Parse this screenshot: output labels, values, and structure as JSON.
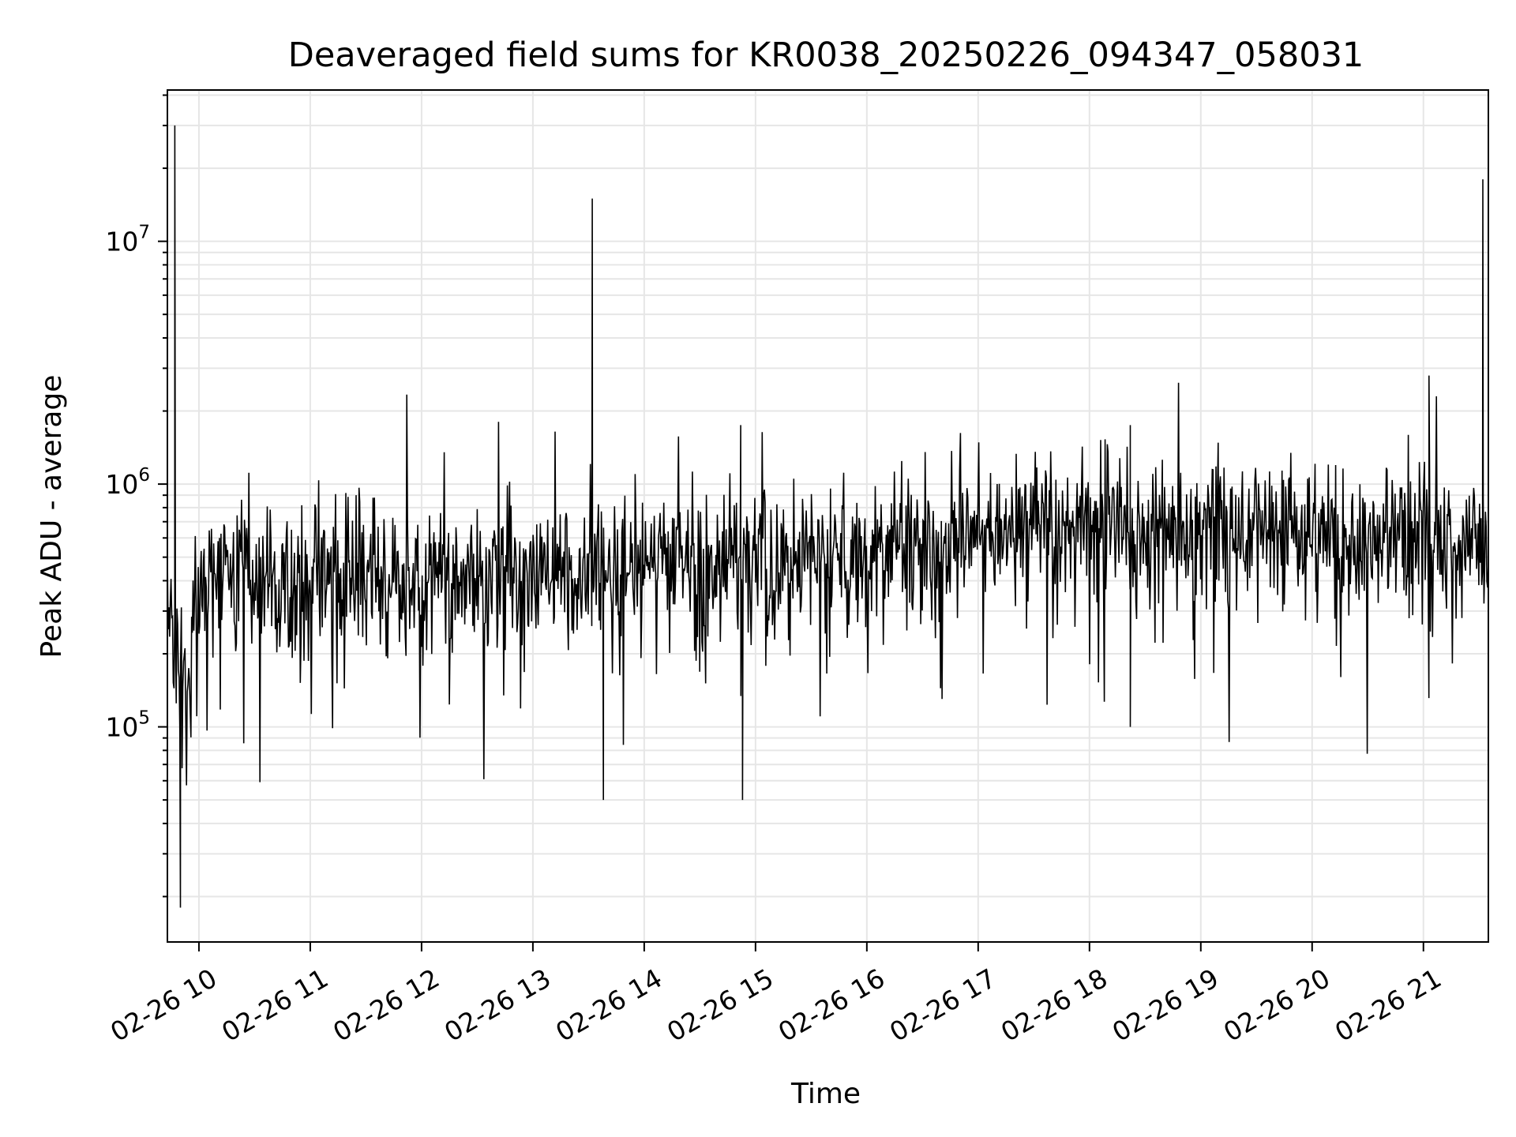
{
  "chart_data": {
    "type": "line",
    "title": "Deaveraged field sums for KR0038_20250226_094347_058031",
    "xlabel": "Time",
    "ylabel": "Peak ADU - average",
    "y_scale": "log",
    "ylim": [
      13000,
      42000000
    ],
    "xlim": [
      "2025-02-26 09:43",
      "2025-02-26 21:35"
    ],
    "grid": true,
    "legend": "none",
    "line_color": "#000000",
    "x_ticks": [
      "02-26 10",
      "02-26 11",
      "02-26 12",
      "02-26 13",
      "02-26 14",
      "02-26 15",
      "02-26 16",
      "02-26 17",
      "02-26 18",
      "02-26 19",
      "02-26 20",
      "02-26 21"
    ],
    "y_ticks": [
      {
        "base": "10",
        "exp": "5",
        "value": 100000
      },
      {
        "base": "10",
        "exp": "6",
        "value": 1000000
      },
      {
        "base": "10",
        "exp": "7",
        "value": 10000000
      }
    ],
    "baseline": {
      "x": [
        "2025-02-26 09:43",
        "2025-02-26 09:50",
        "2025-02-26 10:05",
        "2025-02-26 11:00",
        "2025-02-26 12:00",
        "2025-02-26 13:00",
        "2025-02-26 14:00",
        "2025-02-26 15:00",
        "2025-02-26 16:00",
        "2025-02-26 17:00",
        "2025-02-26 18:00",
        "2025-02-26 19:00",
        "2025-02-26 20:00",
        "2025-02-26 21:00",
        "2025-02-26 21:35"
      ],
      "y": [
        280000,
        160000,
        400000,
        420000,
        400000,
        440000,
        470000,
        470000,
        500000,
        620000,
        630000,
        620000,
        580000,
        580000,
        550000
      ]
    },
    "spikes": {
      "x": [
        "2025-02-26 09:47",
        "2025-02-26 09:50",
        "2025-02-26 13:32",
        "2025-02-26 13:38",
        "2025-02-26 14:52",
        "2025-02-26 14:53",
        "2025-02-26 18:22",
        "2025-02-26 18:22",
        "2025-02-26 21:03",
        "2025-02-26 21:07",
        "2025-02-26 21:32"
      ],
      "y": [
        30000000,
        18000,
        15000000,
        50000,
        1750000,
        50000,
        1750000,
        100000,
        2800000,
        2300000,
        18000000
      ]
    }
  }
}
